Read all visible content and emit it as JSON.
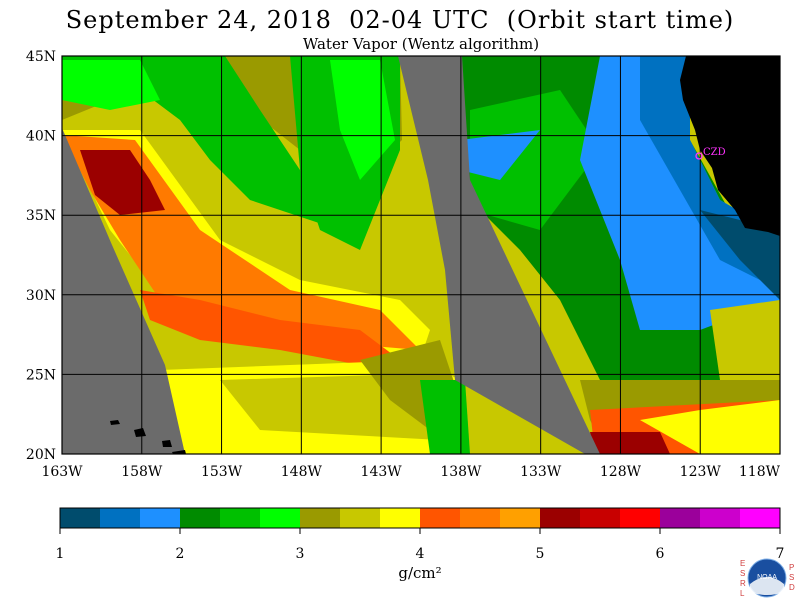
{
  "header": {
    "title": "September 24, 2018  02-04 UTC  (Orbit start time)",
    "subtitle": "Water Vapor (Wentz algorithm)"
  },
  "map": {
    "lat_labels": [
      "45N",
      "40N",
      "35N",
      "30N",
      "25N",
      "20N"
    ],
    "lon_labels": [
      "163W",
      "158W",
      "153W",
      "148W",
      "143W",
      "138W",
      "133W",
      "128W",
      "123W",
      "118W"
    ],
    "lon_range": [
      -163,
      -118
    ],
    "lat_range": [
      20,
      45
    ],
    "station_label": "CZD",
    "colors": {
      "land": "#000000",
      "no_data": "#6b6b6b",
      "station": "#ff33ff"
    }
  },
  "colorbar": {
    "colors": [
      "#004c6d",
      "#0071c1",
      "#1e90ff",
      "#008b00",
      "#00c000",
      "#00ff00",
      "#9a9a00",
      "#c8c800",
      "#ffff00",
      "#ff5500",
      "#ff7a00",
      "#ffa000",
      "#9b0000",
      "#c80000",
      "#ff0000",
      "#9b009b",
      "#cc00cc",
      "#ff00ff"
    ],
    "tick_labels": [
      "1",
      "2",
      "3",
      "4",
      "5",
      "6",
      "7"
    ],
    "unit": "g/cm²"
  },
  "logos": {
    "left_letters": [
      "E",
      "S",
      "R",
      "L"
    ],
    "right_letters": [
      "P",
      "S",
      "D"
    ],
    "center": "NOAA"
  }
}
